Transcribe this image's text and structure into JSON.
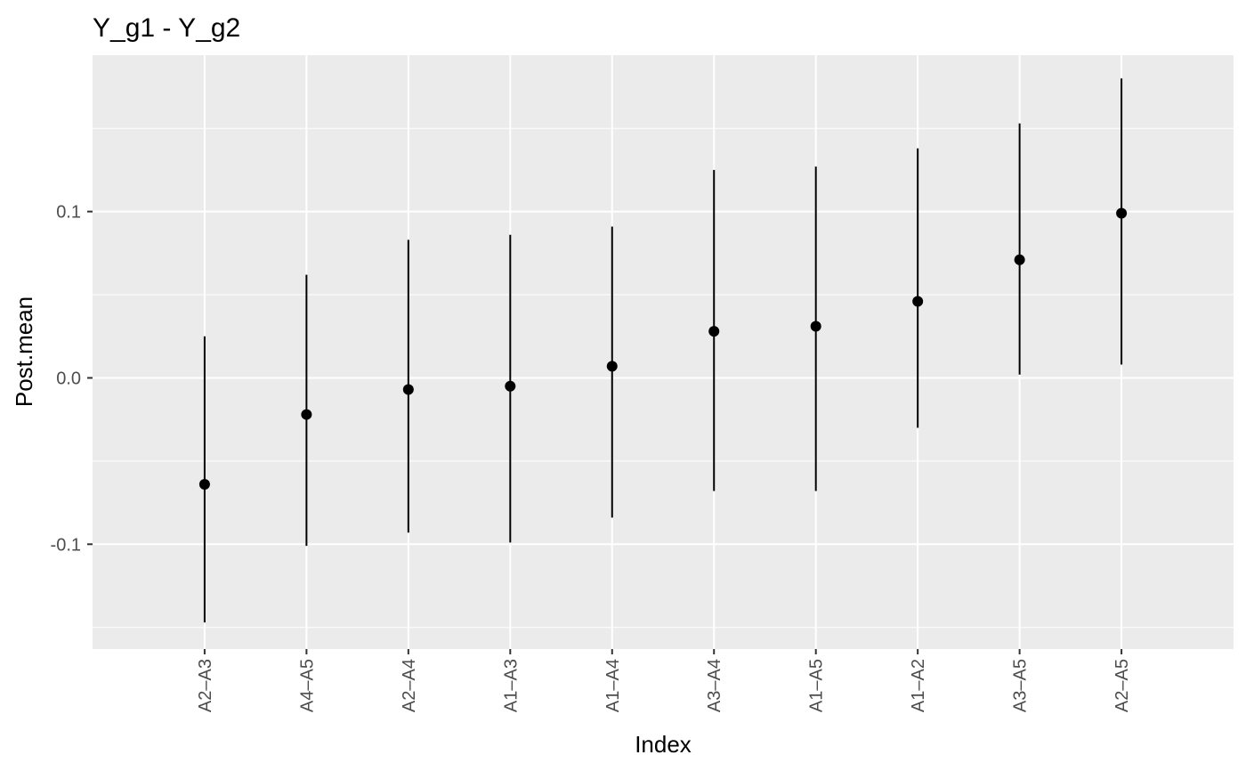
{
  "chart_data": {
    "type": "errorbar",
    "title": "Y_g1 - Y_g2",
    "xlabel": "Index",
    "ylabel": "Post.mean",
    "categories": [
      "A2–A3",
      "A4–A5",
      "A2–A4",
      "A1–A3",
      "A1–A4",
      "A3–A4",
      "A1–A5",
      "A1–A2",
      "A3–A5",
      "A2–A5"
    ],
    "values": [
      -0.064,
      -0.022,
      -0.007,
      -0.005,
      0.007,
      0.028,
      0.031,
      0.046,
      0.071,
      0.099
    ],
    "lower": [
      -0.147,
      -0.101,
      -0.093,
      -0.099,
      -0.084,
      -0.068,
      -0.068,
      -0.03,
      0.002,
      0.008
    ],
    "upper": [
      0.025,
      0.062,
      0.083,
      0.086,
      0.091,
      0.125,
      0.127,
      0.138,
      0.153,
      0.18
    ],
    "ylim": [
      -0.163,
      0.194
    ],
    "yticks": [
      -0.1,
      0.0,
      0.1
    ],
    "ytick_labels": [
      "-0.1",
      "0.0",
      "0.1"
    ],
    "grid": true,
    "colors": {
      "panel": "#ebebeb",
      "grid": "#ffffff",
      "mark": "#000000",
      "tick_text": "#4d4d4d"
    }
  }
}
